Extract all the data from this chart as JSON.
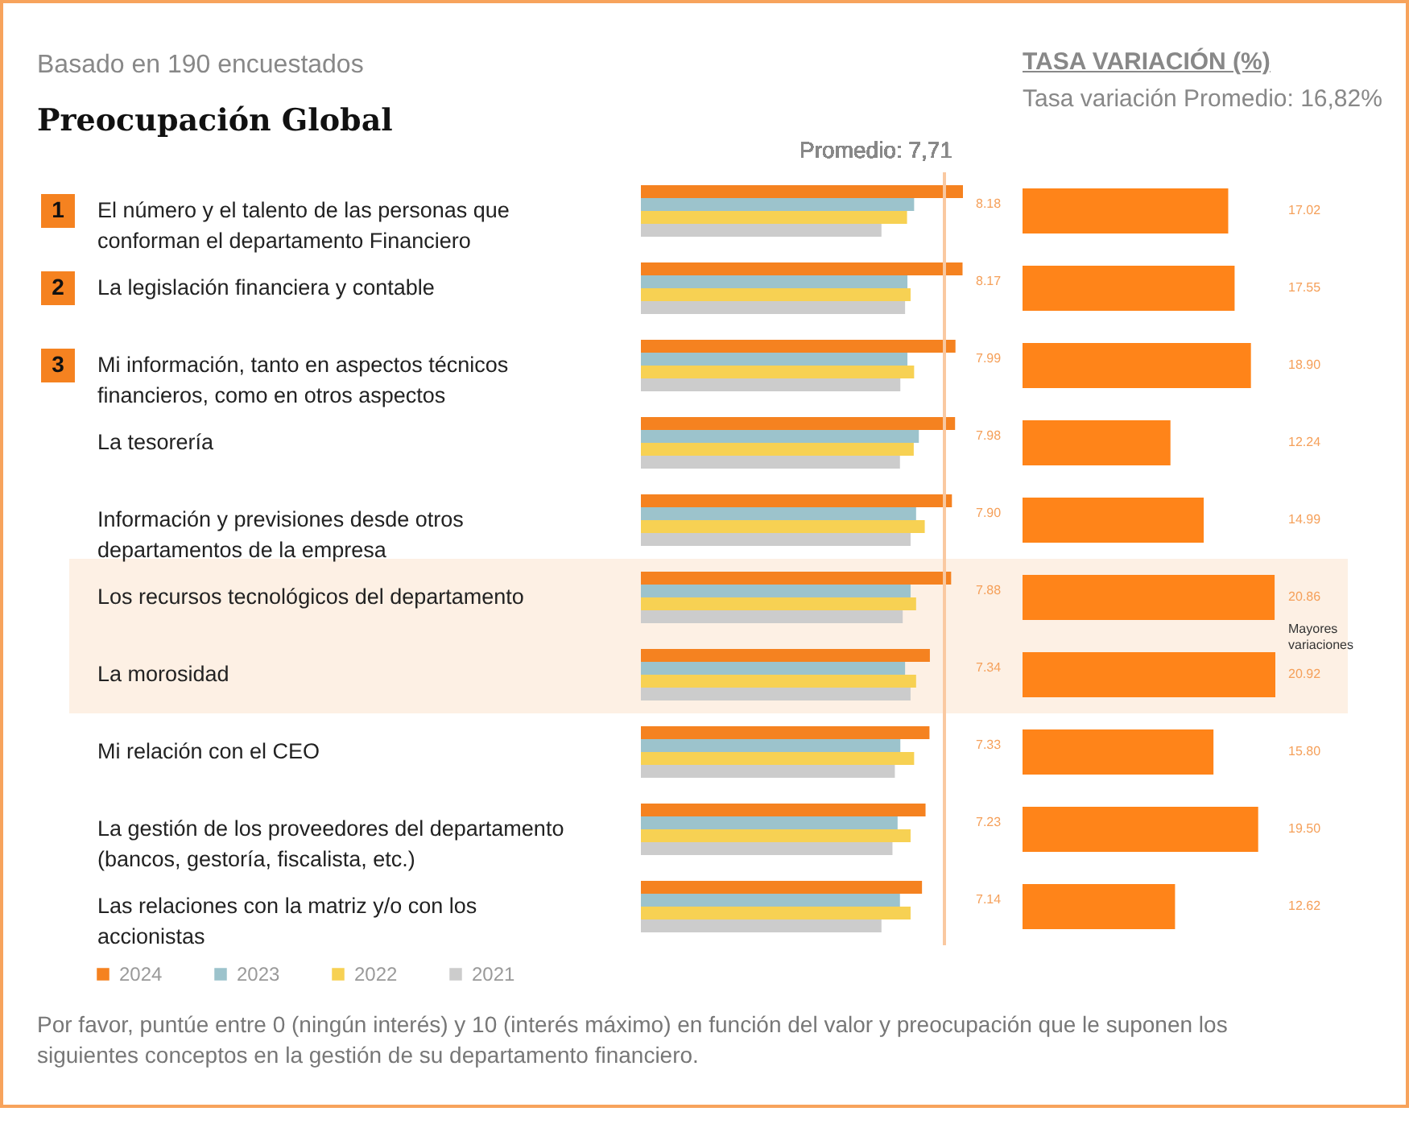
{
  "chart_data": [
    {
      "type": "bar",
      "orientation": "horizontal",
      "title": "Preocupación Global",
      "subtitle": "Basado en 190 encuestados",
      "categories": [
        "El número y el talento de las personas que conforman el departamento Financiero",
        "La legislación financiera y contable",
        "Mi información, tanto en aspectos técnicos financieros, como en otros aspectos",
        "La tesorería",
        "Información y previsiones desde otros departamentos de la empresa",
        "Los recursos tecnológicos del departamento",
        "La morosidad",
        "Mi relación con el CEO",
        "La gestión de los proveedores del departamento (bancos, gestoría, fiscalista, etc.)",
        "Las relaciones con la matriz y/o con los accionistas"
      ],
      "series": [
        {
          "name": "2024",
          "color": "#f58220",
          "values": [
            8.18,
            8.17,
            7.99,
            7.98,
            7.9,
            7.88,
            7.34,
            7.33,
            7.23,
            7.14
          ],
          "value_labels": [
            "8.18",
            "8.17",
            "7.99",
            "7.98",
            "7.90",
            "7.88",
            "7.34",
            "7.33",
            "7.23",
            "7.14"
          ]
        },
        {
          "name": "2023",
          "color": "#9cc3cc",
          "values": [
            6.94,
            6.77,
            6.77,
            7.06,
            6.99,
            6.85,
            6.71,
            6.59,
            6.52,
            6.58
          ]
        },
        {
          "name": "2022",
          "color": "#f7d153",
          "values": [
            6.76,
            6.85,
            6.94,
            6.93,
            7.21,
            6.99,
            6.99,
            6.94,
            6.85,
            6.85
          ]
        },
        {
          "name": "2021",
          "color": "#cccccc",
          "values": [
            6.11,
            6.71,
            6.59,
            6.58,
            6.85,
            6.65,
            6.85,
            6.45,
            6.39,
            6.11
          ]
        }
      ],
      "tick_labels": "y",
      "legend": "bottom left",
      "ref_lines": [
        {
          "axis": "x",
          "value": 7.71,
          "label": "Promedio: 7,71",
          "color": "#f9c9a0"
        }
      ],
      "bands": [
        {
          "axis": "y",
          "from": "Los recursos tecnológicos del departamento",
          "to": "La morosidad",
          "label": "Mayores variaciones",
          "color": "#fdf0e4"
        }
      ],
      "annotations": [
        "1",
        "2",
        "3",
        "Por favor, puntúe entre 0 (ningún interés) y 10 (interés máximo) en función del valor y preocupación que le suponen los siguientes conceptos en la gestión de su departamento financiero."
      ]
    },
    {
      "type": "bar",
      "orientation": "horizontal",
      "title": "TASA VARIACIÓN (%)",
      "subtitle": "Tasa variación Promedio: 16,82%",
      "categories": [
        null,
        null,
        null,
        null,
        null,
        null,
        null,
        null,
        null,
        null
      ],
      "values": [
        17.02,
        17.55,
        18.9,
        12.24,
        14.99,
        20.86,
        20.92,
        15.8,
        19.5,
        12.62
      ],
      "value_labels": [
        "17.02",
        "17.55",
        "18.90",
        "12.24",
        "14.99",
        "20.86",
        "20.92",
        "15.80",
        "19.50",
        "12.62"
      ],
      "color": "#ff8419",
      "tick_labels": false
    }
  ]
}
